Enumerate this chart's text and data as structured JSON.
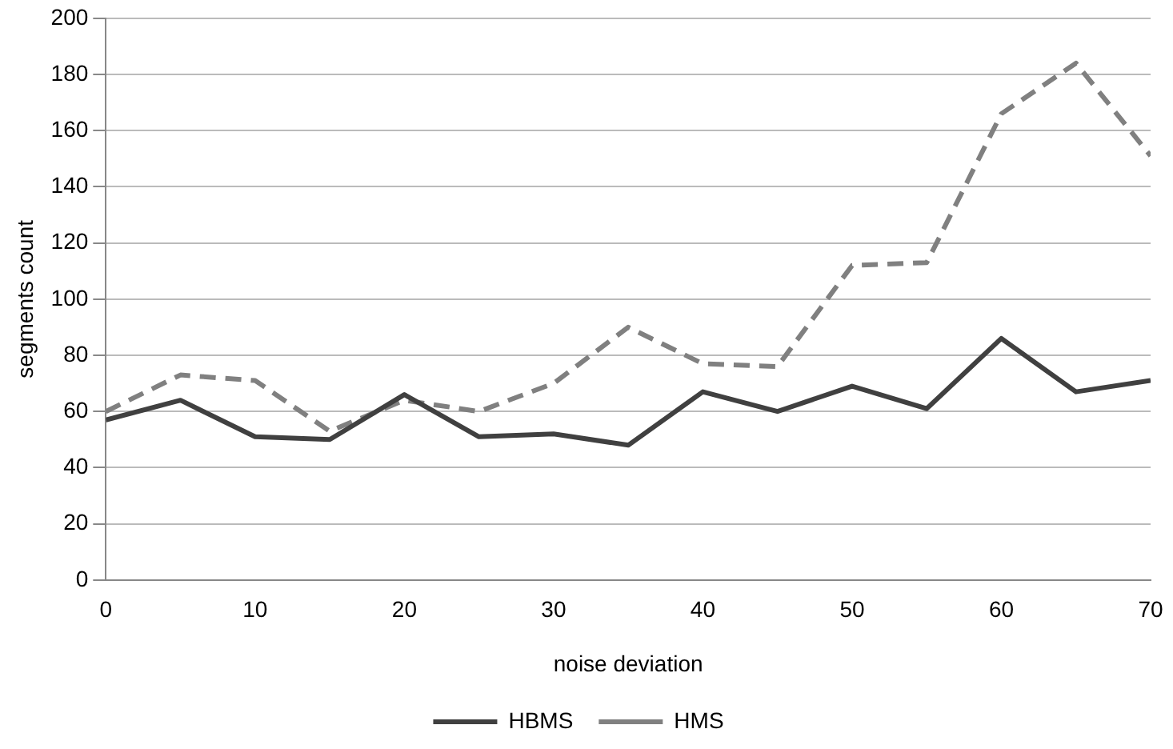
{
  "chart_data": {
    "type": "line",
    "xlabel": "noise deviation",
    "ylabel": "segments count",
    "x": [
      0,
      5,
      10,
      15,
      20,
      25,
      30,
      35,
      40,
      45,
      50,
      55,
      60,
      65,
      70
    ],
    "series": [
      {
        "name": "HBMS",
        "color": "#404040",
        "line_style": "solid",
        "values": [
          57,
          64,
          51,
          50,
          66,
          51,
          52,
          48,
          67,
          60,
          69,
          61,
          86,
          67,
          71
        ]
      },
      {
        "name": "HMS",
        "color": "#808080",
        "line_style": "dashed",
        "values": [
          60,
          73,
          71,
          53,
          64,
          60,
          70,
          90,
          77,
          76,
          112,
          113,
          166,
          184,
          151
        ]
      }
    ],
    "xlim": [
      0,
      70
    ],
    "xticks": [
      0,
      10,
      20,
      30,
      40,
      50,
      60,
      70
    ],
    "ylim": [
      0,
      200
    ],
    "yticks": [
      0,
      20,
      40,
      60,
      80,
      100,
      120,
      140,
      160,
      180,
      200
    ],
    "grid": "y",
    "legend": "bottom",
    "marker": "none"
  }
}
